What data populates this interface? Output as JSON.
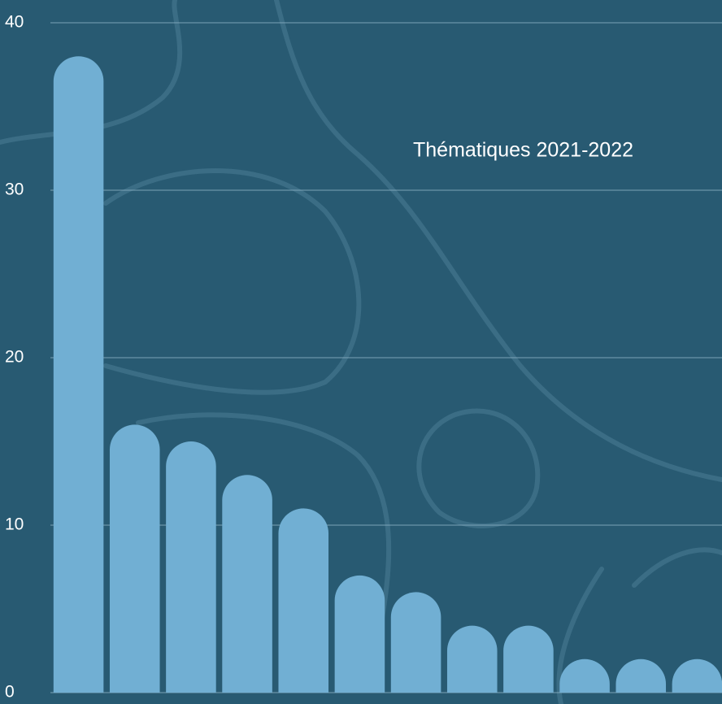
{
  "chart_data": {
    "type": "bar",
    "title": "Thématiques 2021-2022",
    "categories": [
      null,
      null,
      null,
      null,
      null,
      null,
      null,
      null,
      null,
      null,
      null,
      null
    ],
    "values": [
      38,
      16,
      15,
      13,
      11,
      7,
      6,
      4,
      4,
      2,
      2,
      2
    ],
    "color": "#71afd3",
    "ylim": [
      0,
      40
    ],
    "yticks": [
      0,
      10,
      20,
      30,
      40
    ],
    "grid": true
  }
}
